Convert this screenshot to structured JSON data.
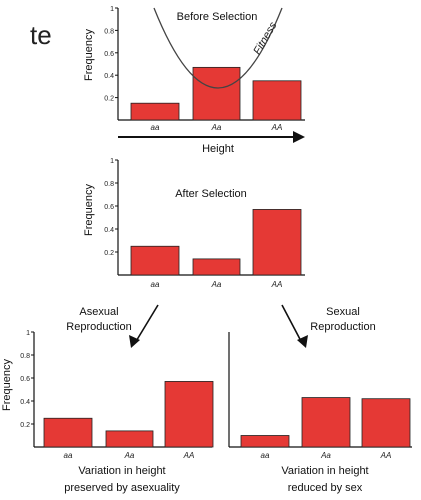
{
  "slide_fragment": "te",
  "colors": {
    "bar_fill": "#e53935",
    "bar_stroke": "#222222",
    "axis": "#111111",
    "curve": "#444444"
  },
  "panels": [
    {
      "id": "before",
      "title": "Before Selection",
      "ylabel": "Frequency",
      "xlabel": "Height",
      "categories": [
        "aa",
        "Aa",
        "AA"
      ],
      "values": [
        0.15,
        0.47,
        0.35
      ],
      "yticks": [
        "1",
        "0.8",
        "0.6",
        "0.4",
        "0.2"
      ],
      "curve_label": "Fitness"
    },
    {
      "id": "after",
      "title": "After Selection",
      "ylabel": "Frequency",
      "categories": [
        "aa",
        "Aa",
        "AA"
      ],
      "values": [
        0.25,
        0.14,
        0.57
      ],
      "yticks": [
        "1",
        "0.8",
        "0.6",
        "0.4",
        "0.2"
      ]
    },
    {
      "id": "asexual",
      "ylabel": "Frequency",
      "categories": [
        "aa",
        "Aa",
        "AA"
      ],
      "values": [
        0.25,
        0.14,
        0.57
      ],
      "yticks": [
        "1",
        "0.8",
        "0.6",
        "0.4",
        "0.2"
      ],
      "caption": [
        "Variation in height",
        "preserved by asexuality"
      ]
    },
    {
      "id": "sexual",
      "categories": [
        "aa",
        "Aa",
        "AA"
      ],
      "values": [
        0.1,
        0.43,
        0.42
      ],
      "caption": [
        "Variation in height",
        "reduced by sex"
      ]
    }
  ],
  "arrows": [
    {
      "label": [
        "Asexual",
        "Reproduction"
      ]
    },
    {
      "label": [
        "Sexual",
        "Reproduction"
      ]
    }
  ]
}
